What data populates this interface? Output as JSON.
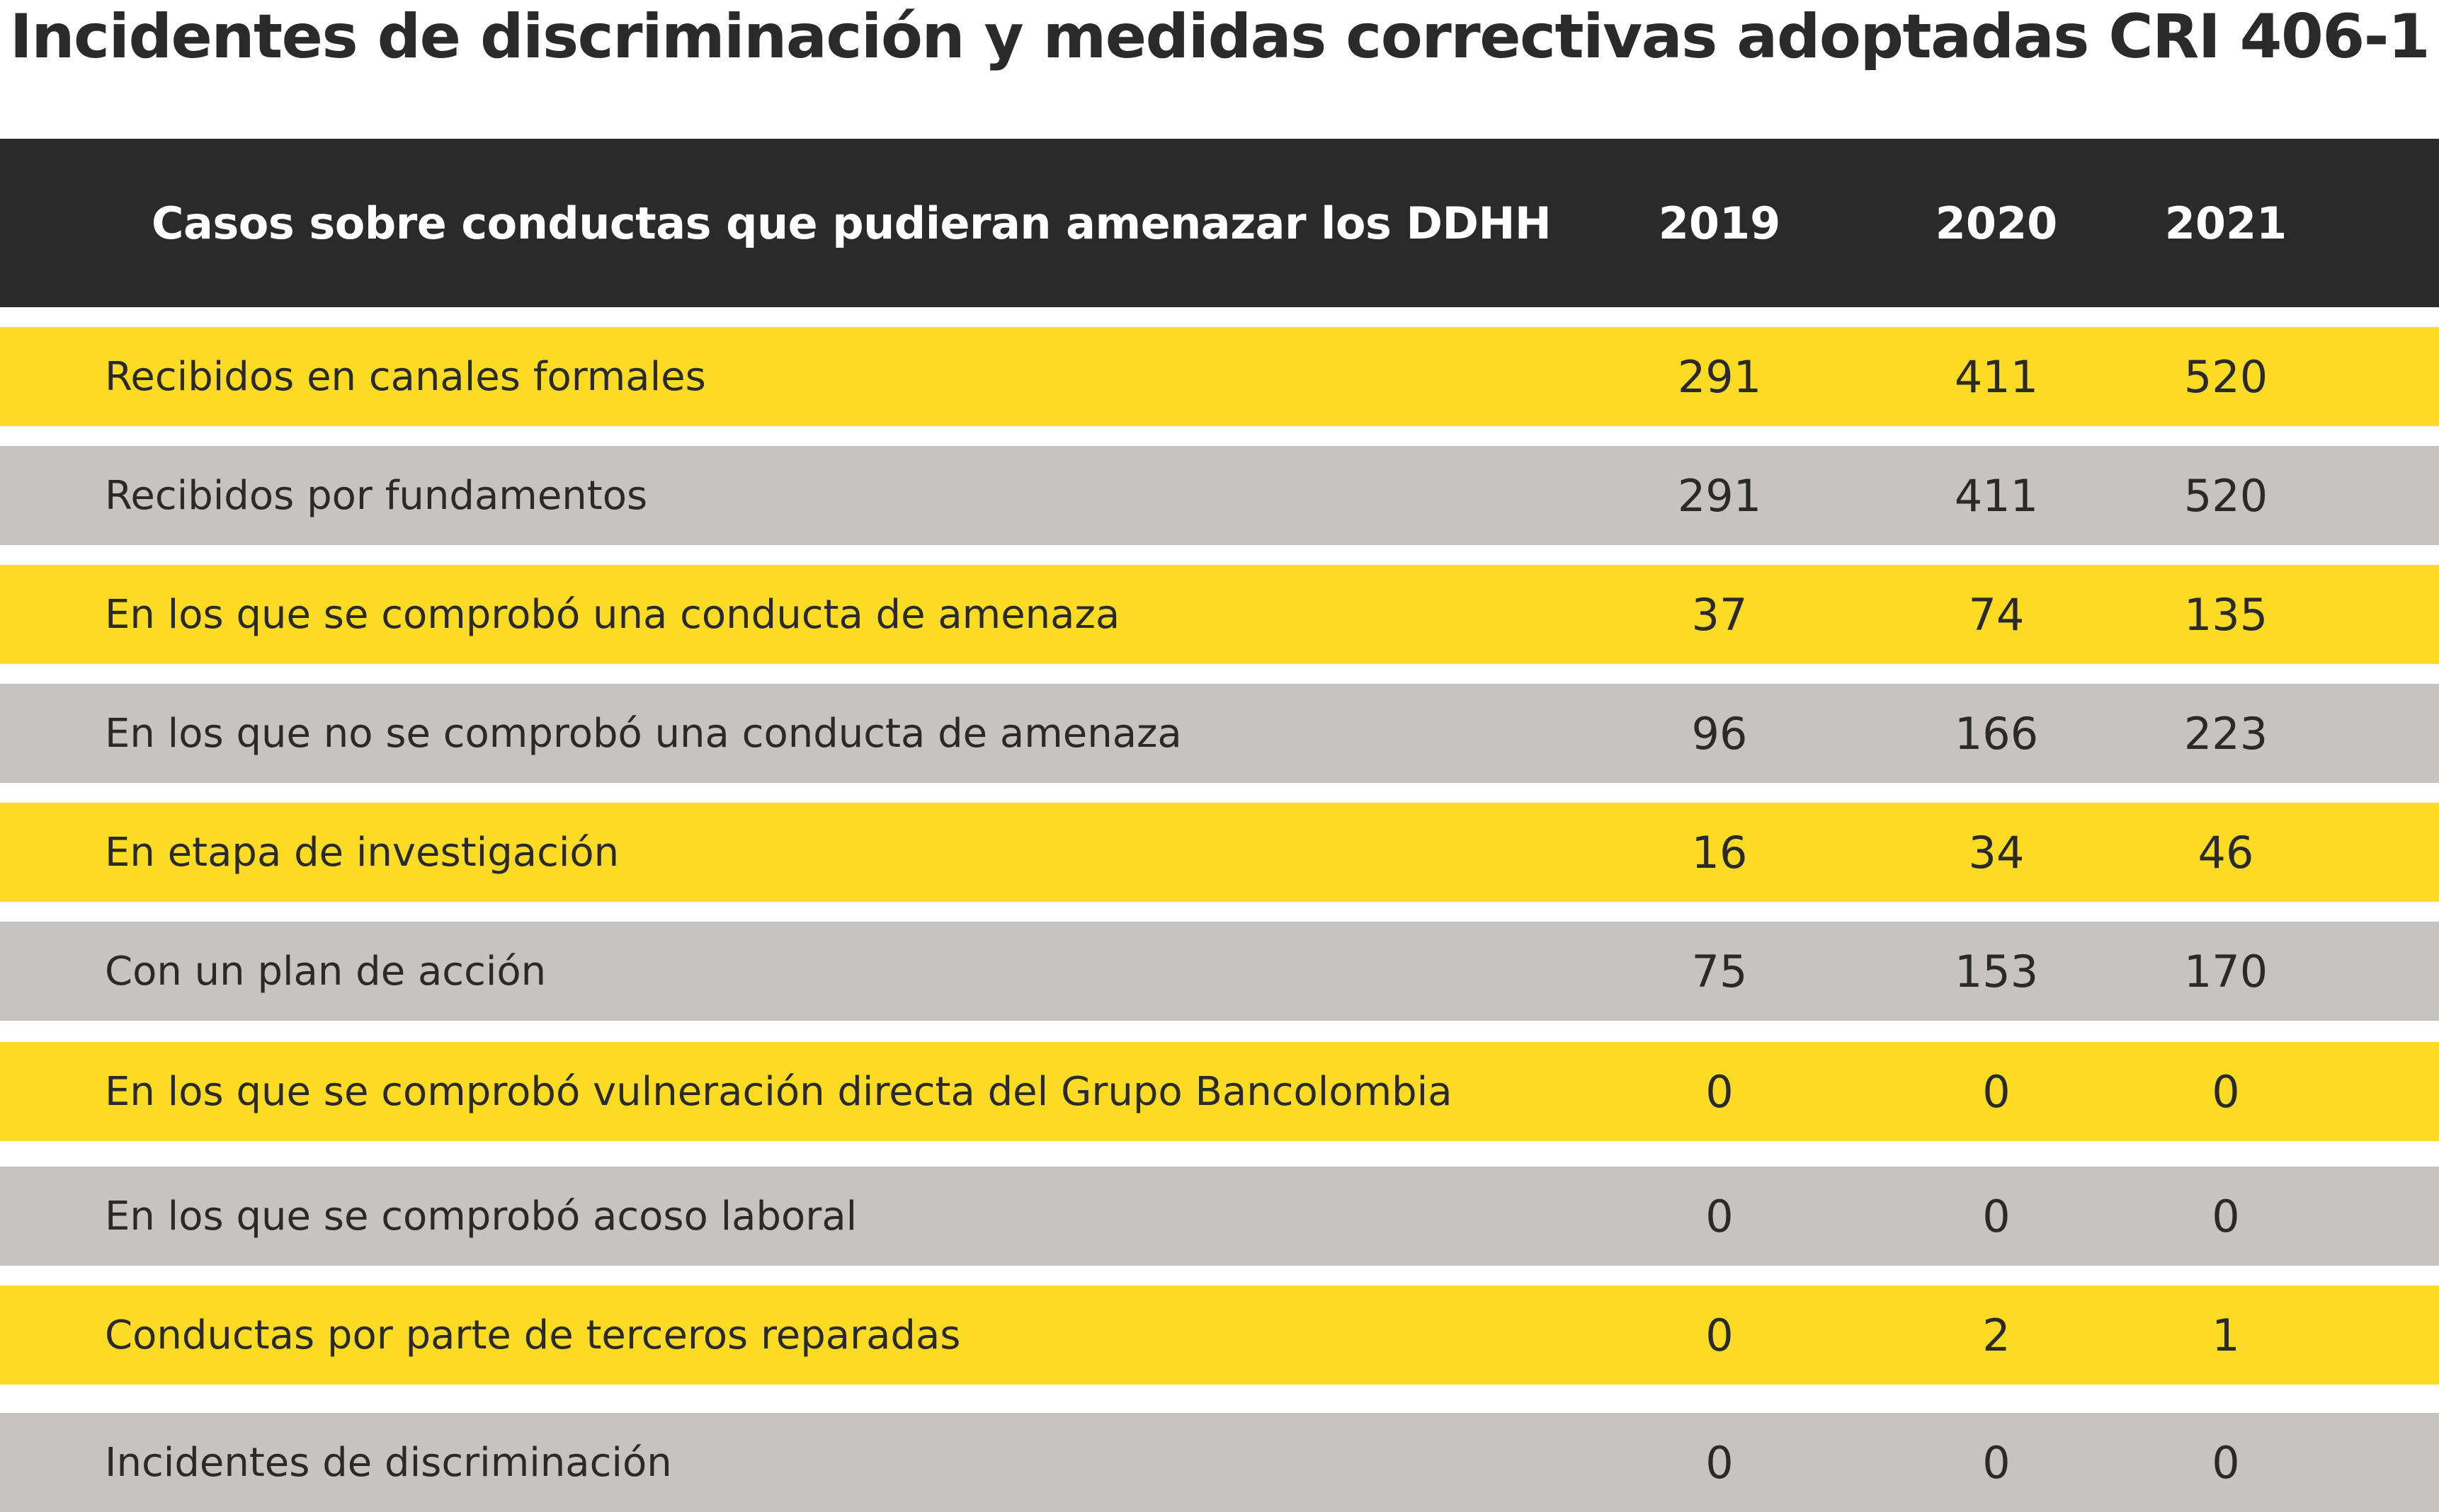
{
  "title": "Incidentes de discriminación y medidas correctivas adoptadas CRI 406-1",
  "colors": {
    "header_bg": "#2a2a2a",
    "row_yellow": "#fcdb24",
    "row_gray": "#c7c3c0"
  },
  "table": {
    "headers": {
      "label": "Casos sobre conductas que pudieran amenazar los DDHH",
      "y2019": "2019",
      "y2020": "2020",
      "y2021": "2021"
    },
    "rows": [
      {
        "label": "Recibidos en canales formales",
        "y2019": "291",
        "y2020": "411",
        "y2021": "520"
      },
      {
        "label": "Recibidos por fundamentos",
        "y2019": "291",
        "y2020": "411",
        "y2021": "520"
      },
      {
        "label": "En los que se comprobó una conducta de amenaza",
        "y2019": "37",
        "y2020": "74",
        "y2021": "135"
      },
      {
        "label": "En los que no se comprobó una conducta de amenaza",
        "y2019": "96",
        "y2020": "166",
        "y2021": "223"
      },
      {
        "label": "En etapa de investigación",
        "y2019": "16",
        "y2020": "34",
        "y2021": "46"
      },
      {
        "label": "Con un plan de acción",
        "y2019": "75",
        "y2020": "153",
        "y2021": "170"
      },
      {
        "label": "En los que se comprobó vulneración directa del Grupo Bancolombia",
        "y2019": "0",
        "y2020": "0",
        "y2021": "0"
      },
      {
        "label": "En los que se comprobó acoso laboral",
        "y2019": "0",
        "y2020": "0",
        "y2021": "0"
      },
      {
        "label": "Conductas por parte de terceros reparadas",
        "y2019": "0",
        "y2020": "2",
        "y2021": "1"
      },
      {
        "label": "Incidentes de discriminación",
        "y2019": "0",
        "y2020": "0",
        "y2021": "0"
      }
    ]
  }
}
